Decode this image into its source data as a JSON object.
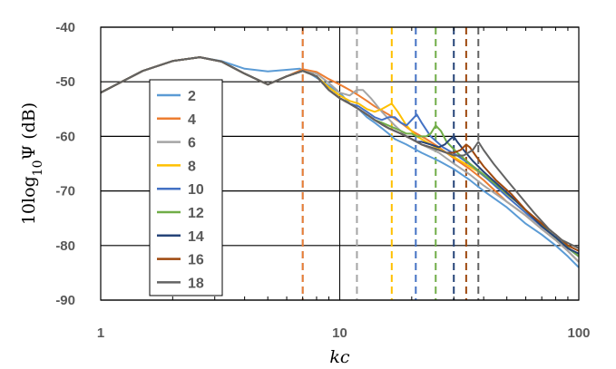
{
  "chart_data": {
    "type": "line",
    "title": "",
    "xlabel": "kc",
    "ylabel": "10log10Ψ (dB)",
    "x_scale": "log",
    "xlim": [
      1,
      100
    ],
    "ylim": [
      -90,
      -40
    ],
    "x_ticks": [
      1,
      10,
      100
    ],
    "x_tick_labels": [
      "1",
      "10",
      "100"
    ],
    "y_ticks": [
      -40,
      -50,
      -60,
      -70,
      -80,
      -90
    ],
    "y_tick_labels": [
      "-40",
      "-50",
      "-60",
      "-70",
      "-80",
      "-90"
    ],
    "grid": "horizontal major lines, vertical lines at decades",
    "legend_position": "left, inside plot",
    "series": [
      {
        "name": "2",
        "color": "#5B9BD5",
        "cutoff": 7.0,
        "points": [
          [
            1,
            -52
          ],
          [
            1.5,
            -48
          ],
          [
            2,
            -46.2
          ],
          [
            2.6,
            -45.5
          ],
          [
            3.2,
            -46.2
          ],
          [
            4,
            -47.6
          ],
          [
            5,
            -48.1
          ],
          [
            6,
            -47.8
          ],
          [
            6.8,
            -47.6
          ],
          [
            7.5,
            -48.5
          ],
          [
            8.5,
            -50
          ],
          [
            10,
            -52
          ],
          [
            11,
            -54
          ],
          [
            12,
            -55
          ],
          [
            13,
            -56.5
          ],
          [
            14,
            -57.5
          ],
          [
            15,
            -58.5
          ],
          [
            16,
            -59.5
          ],
          [
            17,
            -60.5
          ],
          [
            19,
            -61.5
          ],
          [
            22,
            -63
          ],
          [
            26,
            -64.5
          ],
          [
            30,
            -66
          ],
          [
            35,
            -68
          ],
          [
            40,
            -70
          ],
          [
            50,
            -73
          ],
          [
            60,
            -76
          ],
          [
            70,
            -78
          ],
          [
            80,
            -80
          ],
          [
            90,
            -82
          ],
          [
            100,
            -84
          ]
        ]
      },
      {
        "name": "4",
        "color": "#ED7D31",
        "cutoff": 7.0,
        "points": [
          [
            1,
            -52
          ],
          [
            1.5,
            -48
          ],
          [
            2,
            -46.2
          ],
          [
            2.6,
            -45.5
          ],
          [
            3.2,
            -46.3
          ],
          [
            4,
            -48.5
          ],
          [
            5,
            -50.5
          ],
          [
            6,
            -49
          ],
          [
            7,
            -47.7
          ],
          [
            8,
            -48.2
          ],
          [
            9,
            -49.5
          ],
          [
            10,
            -50.5
          ],
          [
            11,
            -51.5
          ],
          [
            12,
            -52.5
          ],
          [
            13,
            -53.5
          ],
          [
            14,
            -54.5
          ],
          [
            16,
            -56
          ],
          [
            18,
            -57.5
          ],
          [
            20,
            -59
          ],
          [
            23,
            -60.5
          ],
          [
            26,
            -62
          ],
          [
            30,
            -64
          ],
          [
            35,
            -66
          ],
          [
            40,
            -68
          ],
          [
            50,
            -72
          ],
          [
            60,
            -74.5
          ],
          [
            70,
            -77
          ],
          [
            80,
            -79
          ],
          [
            90,
            -81
          ],
          [
            100,
            -83
          ]
        ]
      },
      {
        "name": "6",
        "color": "#A5A5A5",
        "cutoff": 11.8,
        "points": [
          [
            1,
            -52
          ],
          [
            1.5,
            -48
          ],
          [
            2,
            -46.2
          ],
          [
            2.6,
            -45.5
          ],
          [
            3.2,
            -46.3
          ],
          [
            4,
            -48.5
          ],
          [
            5,
            -50.5
          ],
          [
            6,
            -49
          ],
          [
            7,
            -48
          ],
          [
            8,
            -48.5
          ],
          [
            9,
            -50.2
          ],
          [
            10,
            -52
          ],
          [
            11,
            -52.5
          ],
          [
            11.8,
            -51.5
          ],
          [
            12.5,
            -51.5
          ],
          [
            13.5,
            -53
          ],
          [
            15,
            -55.5
          ],
          [
            17,
            -58
          ],
          [
            19,
            -60
          ],
          [
            22,
            -61.5
          ],
          [
            26,
            -63
          ],
          [
            30,
            -65
          ],
          [
            35,
            -67
          ],
          [
            40,
            -69
          ],
          [
            50,
            -72
          ],
          [
            60,
            -74.5
          ],
          [
            70,
            -77
          ],
          [
            80,
            -79
          ],
          [
            90,
            -81
          ],
          [
            100,
            -83
          ]
        ]
      },
      {
        "name": "8",
        "color": "#FFC000",
        "cutoff": 16.5,
        "points": [
          [
            1,
            -52
          ],
          [
            1.5,
            -48
          ],
          [
            2,
            -46.2
          ],
          [
            2.6,
            -45.5
          ],
          [
            3.2,
            -46.3
          ],
          [
            4,
            -48.5
          ],
          [
            5,
            -50.5
          ],
          [
            6,
            -49
          ],
          [
            7,
            -48
          ],
          [
            8,
            -49
          ],
          [
            9,
            -51
          ],
          [
            10,
            -52.5
          ],
          [
            11,
            -53.5
          ],
          [
            12,
            -54
          ],
          [
            13,
            -55
          ],
          [
            14,
            -55.5
          ],
          [
            15,
            -55
          ],
          [
            16.5,
            -54
          ],
          [
            17.5,
            -55.5
          ],
          [
            19,
            -58
          ],
          [
            21,
            -60
          ],
          [
            24,
            -61.5
          ],
          [
            28,
            -63
          ],
          [
            32,
            -64.5
          ],
          [
            38,
            -66.5
          ],
          [
            45,
            -69
          ],
          [
            55,
            -72
          ],
          [
            65,
            -75
          ],
          [
            75,
            -77.5
          ],
          [
            85,
            -79.5
          ],
          [
            100,
            -82
          ]
        ]
      },
      {
        "name": "10",
        "color": "#4472C4",
        "cutoff": 20.8,
        "points": [
          [
            1,
            -52
          ],
          [
            1.5,
            -48
          ],
          [
            2,
            -46.2
          ],
          [
            2.6,
            -45.5
          ],
          [
            3.2,
            -46.3
          ],
          [
            4,
            -48.5
          ],
          [
            5,
            -50.5
          ],
          [
            6,
            -49
          ],
          [
            7,
            -48
          ],
          [
            8,
            -49
          ],
          [
            9,
            -51.5
          ],
          [
            10,
            -53
          ],
          [
            11,
            -54
          ],
          [
            12,
            -54.5
          ],
          [
            13,
            -55.5
          ],
          [
            14,
            -56.5
          ],
          [
            15,
            -57
          ],
          [
            16,
            -56.5
          ],
          [
            17,
            -56.5
          ],
          [
            18,
            -57.5
          ],
          [
            19,
            -58
          ],
          [
            20,
            -57
          ],
          [
            21,
            -56
          ],
          [
            22,
            -57.5
          ],
          [
            24,
            -60
          ],
          [
            27,
            -62
          ],
          [
            31,
            -63.5
          ],
          [
            36,
            -65.5
          ],
          [
            42,
            -68
          ],
          [
            50,
            -71
          ],
          [
            60,
            -74
          ],
          [
            70,
            -76.5
          ],
          [
            80,
            -78.5
          ],
          [
            90,
            -80.5
          ],
          [
            100,
            -82
          ]
        ]
      },
      {
        "name": "12",
        "color": "#70AD47",
        "cutoff": 25.2,
        "points": [
          [
            1,
            -52
          ],
          [
            1.5,
            -48
          ],
          [
            2,
            -46.2
          ],
          [
            2.6,
            -45.5
          ],
          [
            3.2,
            -46.3
          ],
          [
            4,
            -48.5
          ],
          [
            5,
            -50.5
          ],
          [
            6,
            -49
          ],
          [
            7,
            -48
          ],
          [
            8,
            -49
          ],
          [
            9,
            -51.5
          ],
          [
            10,
            -53
          ],
          [
            11,
            -54
          ],
          [
            12,
            -55
          ],
          [
            13,
            -56
          ],
          [
            14,
            -57
          ],
          [
            15,
            -57.5
          ],
          [
            16,
            -58
          ],
          [
            17,
            -58.5
          ],
          [
            18,
            -59
          ],
          [
            19,
            -59.5
          ],
          [
            20,
            -59.5
          ],
          [
            21,
            -60
          ],
          [
            22,
            -60
          ],
          [
            23,
            -60
          ],
          [
            24,
            -59.5
          ],
          [
            25.2,
            -58
          ],
          [
            26.5,
            -59
          ],
          [
            28,
            -61
          ],
          [
            31,
            -63
          ],
          [
            35,
            -65
          ],
          [
            40,
            -67
          ],
          [
            47,
            -69.5
          ],
          [
            55,
            -72
          ],
          [
            65,
            -75
          ],
          [
            75,
            -77.5
          ],
          [
            85,
            -79.5
          ],
          [
            100,
            -82
          ]
        ]
      },
      {
        "name": "14",
        "color": "#264478",
        "cutoff": 30.0,
        "points": [
          [
            1,
            -52
          ],
          [
            1.5,
            -48
          ],
          [
            2,
            -46.2
          ],
          [
            2.6,
            -45.5
          ],
          [
            3.2,
            -46.3
          ],
          [
            4,
            -48.5
          ],
          [
            5,
            -50.5
          ],
          [
            6,
            -49
          ],
          [
            7,
            -48
          ],
          [
            8,
            -49
          ],
          [
            9,
            -51.5
          ],
          [
            10,
            -53
          ],
          [
            11,
            -54
          ],
          [
            12,
            -55
          ],
          [
            13,
            -56
          ],
          [
            14,
            -57
          ],
          [
            15,
            -57.8
          ],
          [
            16,
            -58.5
          ],
          [
            17,
            -59
          ],
          [
            18,
            -59.5
          ],
          [
            19,
            -60
          ],
          [
            20,
            -60.5
          ],
          [
            21,
            -61
          ],
          [
            22,
            -61
          ],
          [
            24,
            -61.5
          ],
          [
            26,
            -62
          ],
          [
            27.5,
            -61.5
          ],
          [
            29,
            -60.5
          ],
          [
            30,
            -60
          ],
          [
            31,
            -61
          ],
          [
            33,
            -62.5
          ],
          [
            36,
            -64.5
          ],
          [
            40,
            -66.5
          ],
          [
            45,
            -68.5
          ],
          [
            52,
            -71
          ],
          [
            60,
            -73.5
          ],
          [
            70,
            -76.5
          ],
          [
            80,
            -78.5
          ],
          [
            90,
            -80.5
          ],
          [
            100,
            -81.5
          ]
        ]
      },
      {
        "name": "16",
        "color": "#9E480E",
        "cutoff": 33.8,
        "points": [
          [
            1,
            -52
          ],
          [
            1.5,
            -48
          ],
          [
            2,
            -46.2
          ],
          [
            2.6,
            -45.5
          ],
          [
            3.2,
            -46.3
          ],
          [
            4,
            -48.5
          ],
          [
            5,
            -50.5
          ],
          [
            6,
            -49
          ],
          [
            7,
            -48
          ],
          [
            8,
            -49
          ],
          [
            9,
            -51.5
          ],
          [
            10,
            -53
          ],
          [
            11,
            -54
          ],
          [
            12,
            -55
          ],
          [
            13,
            -56
          ],
          [
            14,
            -57
          ],
          [
            15,
            -57.8
          ],
          [
            16,
            -58.5
          ],
          [
            17,
            -59
          ],
          [
            18,
            -59.5
          ],
          [
            20,
            -60.5
          ],
          [
            22,
            -61.5
          ],
          [
            24,
            -62
          ],
          [
            26,
            -62.5
          ],
          [
            28,
            -63
          ],
          [
            30,
            -63
          ],
          [
            32,
            -62.5
          ],
          [
            33.8,
            -61.5
          ],
          [
            35,
            -62
          ],
          [
            37,
            -63.5
          ],
          [
            40,
            -65.5
          ],
          [
            45,
            -68
          ],
          [
            52,
            -70.5
          ],
          [
            60,
            -73.5
          ],
          [
            70,
            -76
          ],
          [
            80,
            -78
          ],
          [
            90,
            -80
          ],
          [
            100,
            -81
          ]
        ]
      },
      {
        "name": "18",
        "color": "#636363",
        "cutoff": 38.0,
        "points": [
          [
            1,
            -52
          ],
          [
            1.5,
            -48
          ],
          [
            2,
            -46.2
          ],
          [
            2.6,
            -45.5
          ],
          [
            3.2,
            -46.3
          ],
          [
            4,
            -48.5
          ],
          [
            5,
            -50.5
          ],
          [
            6,
            -49
          ],
          [
            7,
            -48
          ],
          [
            8,
            -49
          ],
          [
            9,
            -51.5
          ],
          [
            10,
            -53
          ],
          [
            11,
            -54
          ],
          [
            12,
            -55
          ],
          [
            13,
            -56
          ],
          [
            14,
            -57
          ],
          [
            15,
            -57.8
          ],
          [
            16,
            -58.5
          ],
          [
            17,
            -59
          ],
          [
            18,
            -59.5
          ],
          [
            20,
            -60.5
          ],
          [
            22,
            -61.5
          ],
          [
            24,
            -62
          ],
          [
            26,
            -62.5
          ],
          [
            28,
            -63
          ],
          [
            30,
            -63.5
          ],
          [
            33,
            -63.5
          ],
          [
            36,
            -62.5
          ],
          [
            38,
            -61
          ],
          [
            40,
            -62.5
          ],
          [
            44,
            -65
          ],
          [
            50,
            -68
          ],
          [
            57,
            -71
          ],
          [
            65,
            -74
          ],
          [
            75,
            -77
          ],
          [
            85,
            -79
          ],
          [
            100,
            -80.5
          ]
        ]
      }
    ]
  }
}
